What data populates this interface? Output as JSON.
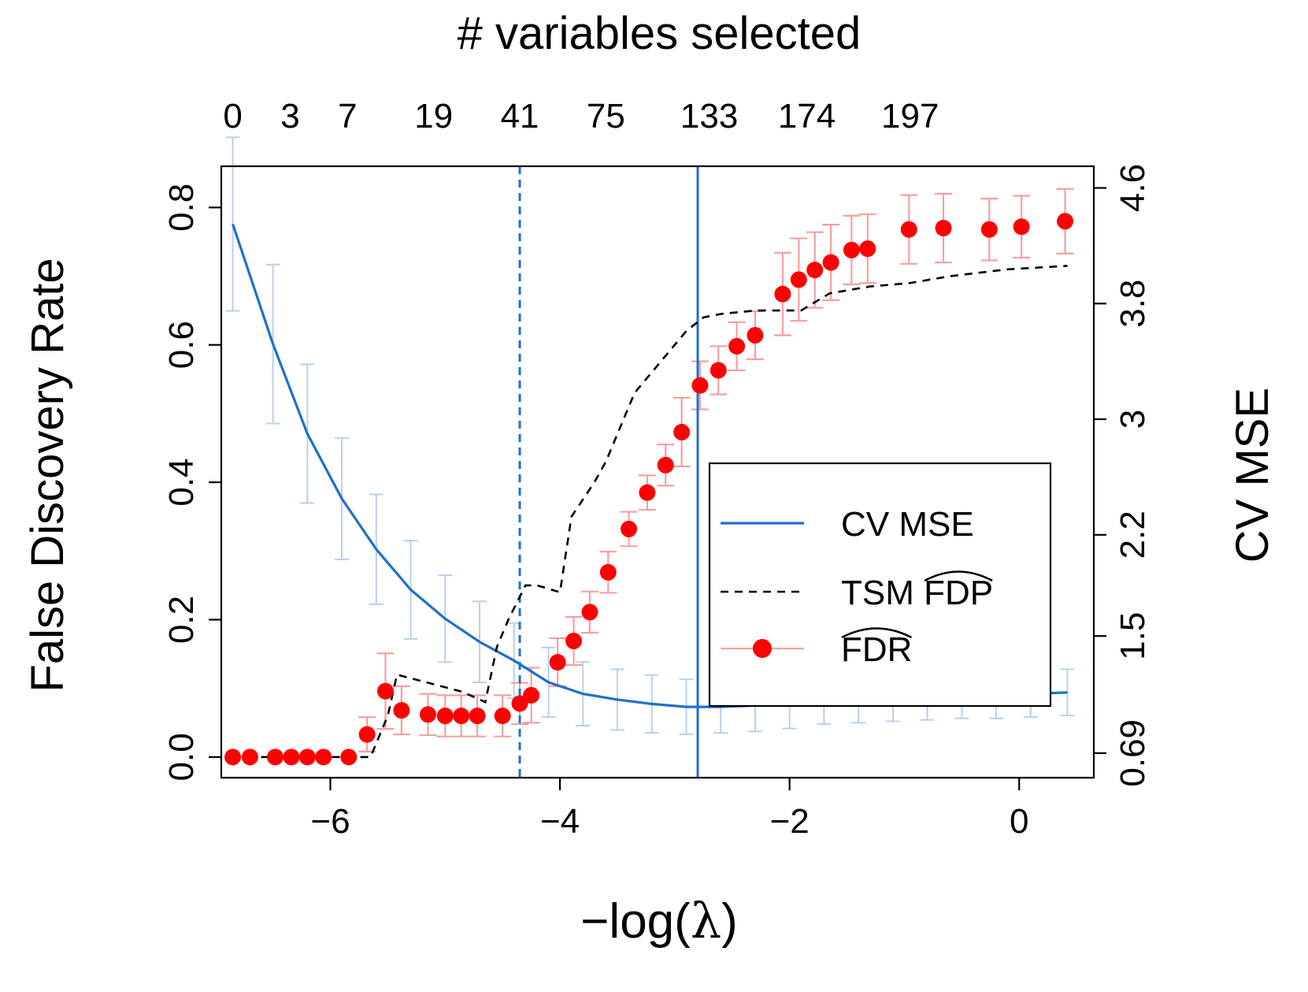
{
  "chart_data": {
    "type": "line",
    "title": "",
    "top_axis_label": "# variables selected",
    "xlabel_prefix": "−log(",
    "xlabel_symbol": "λ",
    "xlabel_suffix": ")",
    "ylabel": "False Discovery Rate",
    "y2label": "CV MSE",
    "xlim": [
      -6.95,
      0.65
    ],
    "ylim": [
      -0.03,
      0.86
    ],
    "y2lim": [
      0.52,
      4.75
    ],
    "x_ticks": [
      {
        "value": -6,
        "label": "−6"
      },
      {
        "value": -4,
        "label": "−4"
      },
      {
        "value": -2,
        "label": "−2"
      },
      {
        "value": 0,
        "label": "0"
      }
    ],
    "y_ticks": [
      {
        "value": 0.0,
        "label": "0.0"
      },
      {
        "value": 0.2,
        "label": "0.2"
      },
      {
        "value": 0.4,
        "label": "0.4"
      },
      {
        "value": 0.6,
        "label": "0.6"
      },
      {
        "value": 0.8,
        "label": "0.8"
      }
    ],
    "y2_ticks": [
      {
        "value": 0.69,
        "label": "0.69"
      },
      {
        "value": 1.5,
        "label": "1.5"
      },
      {
        "value": 2.2,
        "label": "2.2"
      },
      {
        "value": 3.0,
        "label": "3"
      },
      {
        "value": 3.8,
        "label": "3.8"
      },
      {
        "value": 4.6,
        "label": "4.6"
      }
    ],
    "top_ticks": [
      {
        "x": -6.85,
        "label": "0"
      },
      {
        "x": -6.35,
        "label": "3"
      },
      {
        "x": -5.85,
        "label": "7"
      },
      {
        "x": -5.1,
        "label": "19"
      },
      {
        "x": -4.35,
        "label": "41"
      },
      {
        "x": -3.6,
        "label": "75"
      },
      {
        "x": -2.7,
        "label": "133"
      },
      {
        "x": -1.85,
        "label": "174"
      },
      {
        "x": -0.95,
        "label": "197"
      }
    ],
    "vlines": [
      {
        "x": -4.35,
        "style": "dashed",
        "color": "#1f6fcc"
      },
      {
        "x": -2.8,
        "style": "solid",
        "color": "#1f6fcc"
      }
    ],
    "grid": false,
    "legend_position": "right",
    "colors": {
      "cv_mse": "#1f6fcc",
      "cv_mse_err": "#b8d0ee",
      "tsm": "#000000",
      "fdr": "#ff0000",
      "fdr_err": "#f4a0a0"
    },
    "legend": [
      {
        "key": "cv",
        "label": "CV MSE"
      },
      {
        "key": "tsm",
        "label": "TSM ",
        "hat": "FDP"
      },
      {
        "key": "fdr",
        "label": "",
        "hat": "FDR"
      }
    ],
    "series": [
      {
        "key": "cv",
        "name": "CV MSE",
        "axis": "y2",
        "x": [
          -6.85,
          -6.5,
          -6.2,
          -5.9,
          -5.6,
          -5.3,
          -5.0,
          -4.7,
          -4.4,
          -4.1,
          -3.8,
          -3.5,
          -3.2,
          -2.9,
          -2.6,
          -2.3,
          -2.0,
          -1.7,
          -1.4,
          -1.1,
          -0.8,
          -0.5,
          -0.2,
          0.1,
          0.42
        ],
        "values": [
          4.35,
          3.52,
          2.9,
          2.45,
          2.1,
          1.82,
          1.62,
          1.46,
          1.33,
          1.18,
          1.1,
          1.06,
          1.03,
          1.01,
          1.01,
          1.02,
          1.03,
          1.05,
          1.06,
          1.07,
          1.08,
          1.09,
          1.09,
          1.1,
          1.11
        ],
        "err": [
          0.6,
          0.55,
          0.48,
          0.42,
          0.38,
          0.34,
          0.3,
          0.28,
          0.26,
          0.24,
          0.22,
          0.21,
          0.2,
          0.19,
          0.18,
          0.18,
          0.17,
          0.16,
          0.16,
          0.16,
          0.16,
          0.16,
          0.16,
          0.16,
          0.16
        ]
      },
      {
        "key": "tsm",
        "name": "TSM FDP",
        "axis": "y",
        "x": [
          -6.85,
          -5.65,
          -5.5,
          -5.42,
          -4.85,
          -4.65,
          -4.55,
          -4.45,
          -4.3,
          -4.2,
          -4.0,
          -3.9,
          -3.7,
          -3.6,
          -3.35,
          -3.1,
          -2.9,
          -2.75,
          -2.6,
          -2.3,
          -2.05,
          -1.9,
          -1.65,
          -1.3,
          -0.95,
          -0.6,
          -0.1,
          0.42
        ],
        "values": [
          0.0,
          0.0,
          0.06,
          0.12,
          0.095,
          0.08,
          0.16,
          0.2,
          0.25,
          0.25,
          0.24,
          0.35,
          0.4,
          0.43,
          0.53,
          0.58,
          0.62,
          0.64,
          0.645,
          0.65,
          0.65,
          0.65,
          0.675,
          0.685,
          0.69,
          0.7,
          0.71,
          0.715
        ]
      },
      {
        "key": "fdr",
        "name": "FDR",
        "axis": "y",
        "x": [
          -6.85,
          -6.7,
          -6.48,
          -6.34,
          -6.2,
          -6.06,
          -5.84,
          -5.68,
          -5.52,
          -5.38,
          -5.15,
          -5.0,
          -4.86,
          -4.72,
          -4.5,
          -4.35,
          -4.25,
          -4.02,
          -3.88,
          -3.74,
          -3.58,
          -3.4,
          -3.24,
          -3.08,
          -2.94,
          -2.78,
          -2.62,
          -2.46,
          -2.3,
          -2.06,
          -1.92,
          -1.78,
          -1.64,
          -1.46,
          -1.32,
          -0.96,
          -0.66,
          -0.26,
          0.02,
          0.4
        ],
        "values": [
          0.0,
          0.0,
          0.0,
          0.0,
          0.0,
          0.0,
          0.0,
          0.033,
          0.096,
          0.068,
          0.062,
          0.06,
          0.06,
          0.06,
          0.06,
          0.078,
          0.09,
          0.138,
          0.169,
          0.211,
          0.269,
          0.332,
          0.385,
          0.425,
          0.473,
          0.541,
          0.563,
          0.598,
          0.614,
          0.674,
          0.695,
          0.709,
          0.72,
          0.738,
          0.74,
          0.768,
          0.77,
          0.768,
          0.772,
          0.78
        ],
        "err": [
          0.0,
          0.0,
          0.0,
          0.0,
          0.0,
          0.0,
          0.0,
          0.025,
          0.055,
          0.035,
          0.03,
          0.03,
          0.03,
          0.03,
          0.03,
          0.03,
          0.04,
          0.035,
          0.035,
          0.03,
          0.03,
          0.025,
          0.025,
          0.03,
          0.05,
          0.035,
          0.035,
          0.035,
          0.035,
          0.06,
          0.06,
          0.055,
          0.055,
          0.05,
          0.05,
          0.05,
          0.05,
          0.045,
          0.045,
          0.047
        ]
      }
    ]
  }
}
